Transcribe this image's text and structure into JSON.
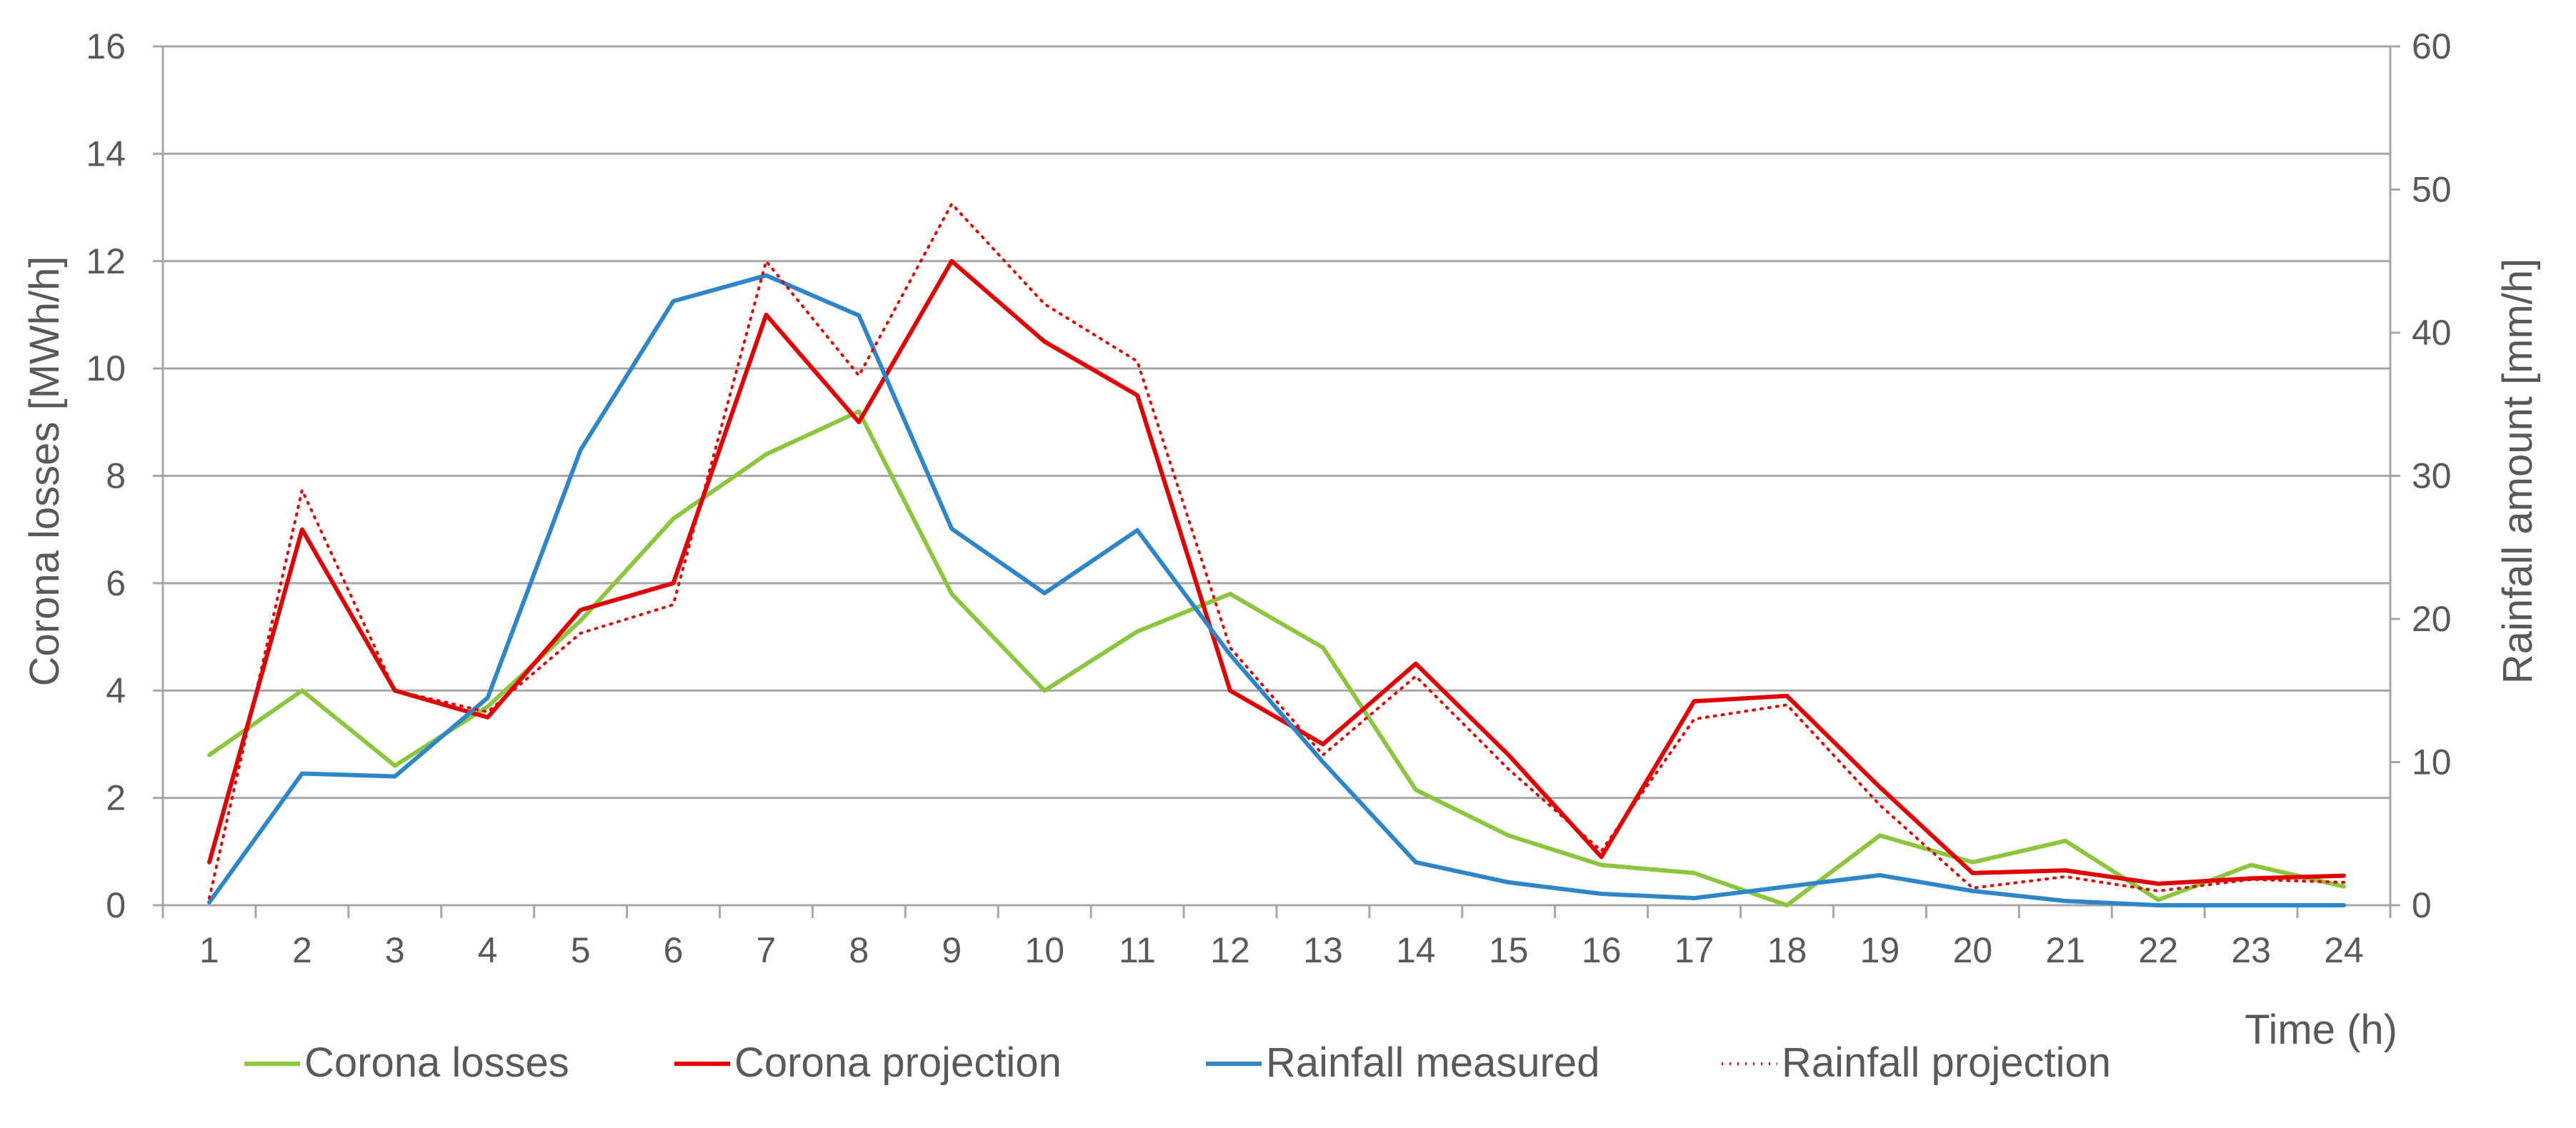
{
  "chart_data": {
    "type": "line",
    "x": [
      1,
      2,
      3,
      4,
      5,
      6,
      7,
      8,
      9,
      10,
      11,
      12,
      13,
      14,
      15,
      16,
      17,
      18,
      19,
      20,
      21,
      22,
      23,
      24
    ],
    "x_tick_labels": [
      "1",
      "2",
      "3",
      "4",
      "5",
      "6",
      "7",
      "8",
      "9",
      "10",
      "11",
      "12",
      "13",
      "14",
      "15",
      "16",
      "17",
      "18",
      "19",
      "20",
      "21",
      "22",
      "23",
      "24"
    ],
    "xlabel": "Time (h)",
    "ylabel": "Corona losses [MWh/h]",
    "y2label": "Rainfall amount [mm/h]",
    "ylim": [
      0,
      16
    ],
    "y2lim": [
      0,
      60
    ],
    "y_ticks": [
      "0",
      "2",
      "4",
      "6",
      "8",
      "10",
      "12",
      "14",
      "16"
    ],
    "y2_ticks": [
      "0",
      "10",
      "20",
      "30",
      "40",
      "50",
      "60"
    ],
    "grid": true,
    "legend_position": "bottom",
    "series": [
      {
        "name": "Corona losses",
        "axis": "left",
        "color": "#8cc63f",
        "style": "solid",
        "values": [
          2.8,
          4.0,
          2.6,
          3.7,
          5.3,
          7.2,
          8.4,
          9.2,
          5.8,
          4.0,
          5.1,
          5.8,
          4.8,
          2.15,
          1.3,
          0.75,
          0.6,
          0.0,
          1.3,
          0.8,
          1.2,
          0.1,
          0.75,
          0.35
        ]
      },
      {
        "name": "Corona projection",
        "axis": "left",
        "color": "#e00000",
        "style": "solid",
        "values": [
          0.8,
          7.0,
          4.0,
          3.5,
          5.5,
          6.0,
          11.0,
          9.0,
          12.0,
          10.5,
          9.5,
          4.0,
          3.0,
          4.5,
          2.8,
          0.9,
          3.8,
          3.9,
          2.2,
          0.6,
          0.65,
          0.4,
          0.5,
          0.55
        ]
      },
      {
        "name": "Rainfall measured",
        "axis": "right",
        "color": "#2e86c8",
        "style": "solid",
        "values": [
          0.2,
          9.2,
          9.0,
          14.5,
          31.8,
          42.2,
          44.0,
          41.2,
          26.3,
          21.8,
          26.2,
          17.5,
          10.0,
          3.0,
          1.6,
          0.8,
          0.5,
          1.3,
          2.1,
          1.0,
          0.3,
          0.0,
          0.0,
          0.0
        ]
      },
      {
        "name": "Rainfall projection",
        "axis": "right",
        "color": "#e00000",
        "style": "dotted",
        "values": [
          0.5,
          29.0,
          15.0,
          13.5,
          19.0,
          21.0,
          45.0,
          37.0,
          49.0,
          42.0,
          38.0,
          18.0,
          10.5,
          16.0,
          9.5,
          3.8,
          13.0,
          14.0,
          7.0,
          1.2,
          2.0,
          1.0,
          1.8,
          1.6
        ]
      }
    ]
  }
}
